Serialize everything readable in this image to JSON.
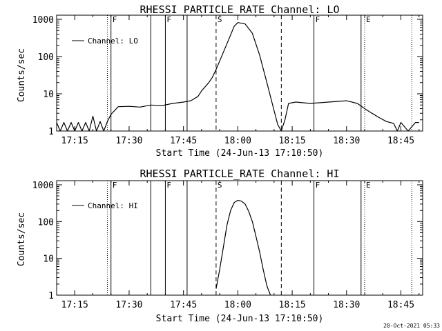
{
  "footer": {
    "timestamp": "20-Oct-2021 05:33"
  },
  "chart_data": [
    {
      "type": "line",
      "title": "RHESSI PARTICLE_RATE Channel: LO",
      "xlabel": "Start Time (24-Jun-13 17:10:50)",
      "ylabel": "Counts/sec",
      "y_scale": "log",
      "ylim": [
        1,
        1000
      ],
      "xlim": [
        "17:10",
        "18:51"
      ],
      "x_ticks": [
        "17:15",
        "17:30",
        "17:45",
        "18:00",
        "18:15",
        "18:30",
        "18:45"
      ],
      "y_ticks": [
        "1",
        "10",
        "100",
        "1000"
      ],
      "legend": {
        "label": "Channel: LO",
        "placement": "top-left"
      },
      "markers": [
        {
          "time": "17:24",
          "style": "dotted",
          "label": ""
        },
        {
          "time": "17:25",
          "style": "solid",
          "label": "F"
        },
        {
          "time": "17:36",
          "style": "solid",
          "label": ""
        },
        {
          "time": "17:40",
          "style": "solid",
          "label": "F"
        },
        {
          "time": "17:46",
          "style": "solid",
          "label": ""
        },
        {
          "time": "17:54",
          "style": "dashed",
          "label": "S"
        },
        {
          "time": "18:12",
          "style": "dashed",
          "label": ""
        },
        {
          "time": "18:21",
          "style": "solid",
          "label": "F"
        },
        {
          "time": "18:34",
          "style": "solid",
          "label": ""
        },
        {
          "time": "18:35",
          "style": "dotted",
          "label": "E"
        },
        {
          "time": "18:48",
          "style": "dotted",
          "label": ""
        }
      ],
      "series": [
        {
          "name": "Channel: LO",
          "x": [
            "17:10",
            "17:11",
            "17:12",
            "17:13",
            "17:14",
            "17:15",
            "17:16",
            "17:17",
            "17:18",
            "17:19",
            "17:20",
            "17:21",
            "17:22",
            "17:23",
            "17:24",
            "17:25",
            "17:27",
            "17:30",
            "17:33",
            "17:36",
            "17:39",
            "17:42",
            "17:45",
            "17:47",
            "17:49",
            "17:50",
            "17:52",
            "17:53",
            "17:54",
            "17:56",
            "17:58",
            "17:59",
            "18:00",
            "18:02",
            "18:04",
            "18:06",
            "18:08",
            "18:10",
            "18:11",
            "18:12",
            "18:13",
            "18:14",
            "18:16",
            "18:20",
            "18:25",
            "18:30",
            "18:33",
            "18:35",
            "18:37",
            "18:39",
            "18:41",
            "18:43",
            "18:44",
            "18:45",
            "18:47",
            "18:49",
            "18:50"
          ],
          "values": [
            1.7,
            1.0,
            1.7,
            1.0,
            1.7,
            1.0,
            1.7,
            1.0,
            1.7,
            1.0,
            2.5,
            1.0,
            1.8,
            1.0,
            1.8,
            2.8,
            4.5,
            4.6,
            4.4,
            5.0,
            4.8,
            5.5,
            6.0,
            6.5,
            8.5,
            12,
            20,
            28,
            45,
            130,
            380,
            650,
            820,
            750,
            420,
            110,
            20,
            3.5,
            1.5,
            1.0,
            2.0,
            5.5,
            6.0,
            5.5,
            6.0,
            6.5,
            5.5,
            4.0,
            3.0,
            2.3,
            1.8,
            1.6,
            1.0,
            1.7,
            1.0,
            1.7,
            1.7
          ]
        }
      ]
    },
    {
      "type": "line",
      "title": "RHESSI PARTICLE_RATE Channel: HI",
      "xlabel": "Start Time (24-Jun-13 17:10:50)",
      "ylabel": "Counts/sec",
      "y_scale": "log",
      "ylim": [
        1,
        1000
      ],
      "xlim": [
        "17:10",
        "18:51"
      ],
      "x_ticks": [
        "17:15",
        "17:30",
        "17:45",
        "18:00",
        "18:15",
        "18:30",
        "18:45"
      ],
      "y_ticks": [
        "1",
        "10",
        "100",
        "1000"
      ],
      "legend": {
        "label": "Channel: HI",
        "placement": "top-left"
      },
      "markers": [
        {
          "time": "17:24",
          "style": "dotted",
          "label": ""
        },
        {
          "time": "17:25",
          "style": "solid",
          "label": "F"
        },
        {
          "time": "17:36",
          "style": "solid",
          "label": ""
        },
        {
          "time": "17:40",
          "style": "solid",
          "label": "F"
        },
        {
          "time": "17:46",
          "style": "solid",
          "label": ""
        },
        {
          "time": "17:54",
          "style": "dashed",
          "label": "S"
        },
        {
          "time": "18:12",
          "style": "dashed",
          "label": ""
        },
        {
          "time": "18:21",
          "style": "solid",
          "label": "F"
        },
        {
          "time": "18:34",
          "style": "solid",
          "label": ""
        },
        {
          "time": "18:35",
          "style": "dotted",
          "label": "E"
        },
        {
          "time": "18:48",
          "style": "dotted",
          "label": ""
        }
      ],
      "series": [
        {
          "name": "Channel: HI",
          "x": [
            "17:54",
            "17:55",
            "17:56",
            "17:57",
            "17:58",
            "17:59",
            "18:00",
            "18:01",
            "18:02",
            "18:03",
            "18:04",
            "18:05",
            "18:06",
            "18:07",
            "18:08",
            "18:09"
          ],
          "values": [
            1.5,
            5.0,
            20,
            80,
            200,
            330,
            380,
            360,
            300,
            190,
            100,
            40,
            15,
            5.0,
            1.8,
            1.0
          ]
        }
      ]
    }
  ]
}
